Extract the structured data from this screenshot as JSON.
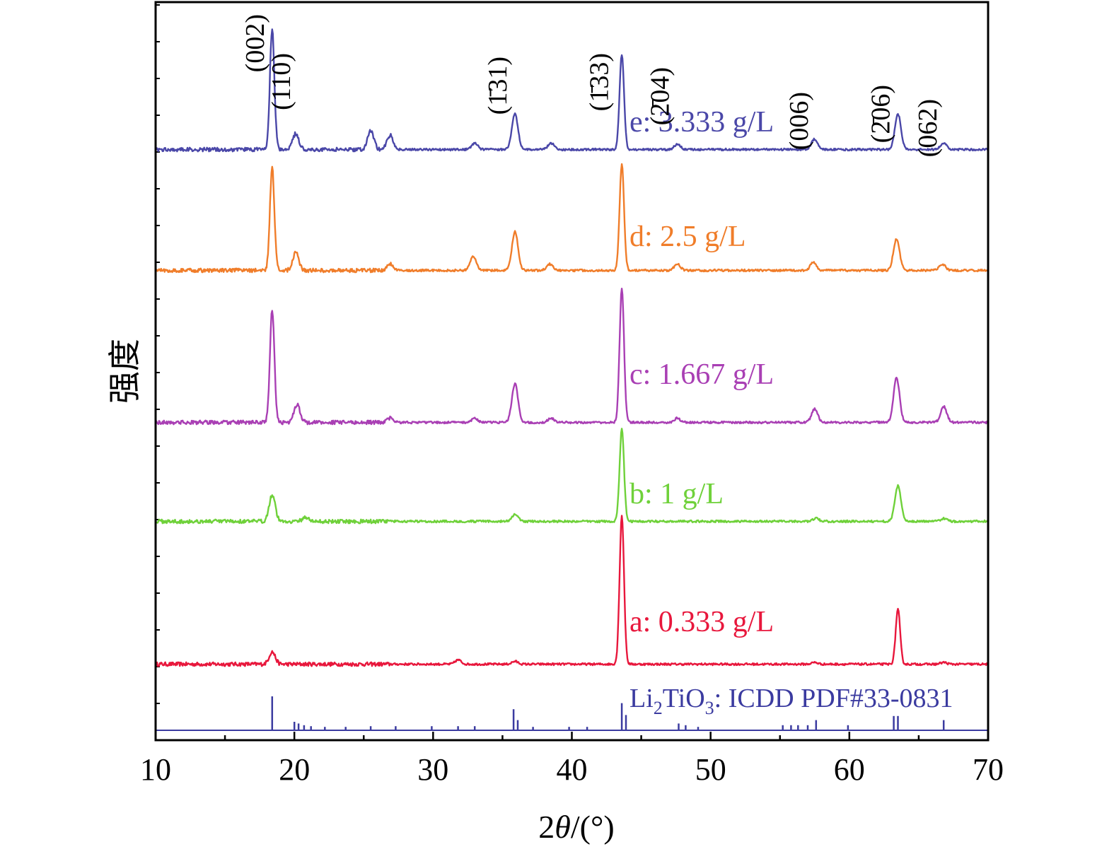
{
  "chart_data": {
    "type": "line",
    "title": "",
    "xlabel": {
      "prefix": "2",
      "italic": "θ",
      "suffix": "/(°)"
    },
    "ylabel": "强度",
    "xlim": [
      10,
      70
    ],
    "xticks": [
      "10",
      "20",
      "30",
      "40",
      "50",
      "60",
      "70"
    ],
    "grid": false,
    "legend": "inline labels next to curves",
    "series": [
      {
        "label": "a: 0.333 g/L",
        "color": "#e8173c",
        "baseline": 0.05,
        "peaks": [
          [
            18.4,
            0.35
          ],
          [
            31.8,
            0.12
          ],
          [
            35.9,
            0.08
          ],
          [
            43.6,
            4.2
          ],
          [
            57.5,
            0.05
          ],
          [
            63.5,
            1.55
          ],
          [
            66.8,
            0.05
          ]
        ]
      },
      {
        "label": "b: 1 g/L",
        "color": "#6fd13a",
        "baseline": 0.05,
        "peaks": [
          [
            18.4,
            0.75
          ],
          [
            20.8,
            0.12
          ],
          [
            35.9,
            0.2
          ],
          [
            43.6,
            2.6
          ],
          [
            57.6,
            0.08
          ],
          [
            63.5,
            1.0
          ],
          [
            66.8,
            0.08
          ]
        ]
      },
      {
        "label": "c: 1.667 g/L",
        "color": "#a93fb4",
        "baseline": 0.05,
        "peaks": [
          [
            18.4,
            3.2
          ],
          [
            20.2,
            0.5
          ],
          [
            26.9,
            0.12
          ],
          [
            33.0,
            0.12
          ],
          [
            35.9,
            1.1
          ],
          [
            38.5,
            0.12
          ],
          [
            43.6,
            3.8
          ],
          [
            47.6,
            0.12
          ],
          [
            57.5,
            0.38
          ],
          [
            63.4,
            1.25
          ],
          [
            66.8,
            0.45
          ]
        ]
      },
      {
        "label": "d: 2.5 g/L",
        "color": "#f07d2a",
        "baseline": 0.05,
        "peaks": [
          [
            18.4,
            2.9
          ],
          [
            20.1,
            0.5
          ],
          [
            26.9,
            0.18
          ],
          [
            32.9,
            0.4
          ],
          [
            35.9,
            1.1
          ],
          [
            38.4,
            0.18
          ],
          [
            43.6,
            3.0
          ],
          [
            47.6,
            0.18
          ],
          [
            57.4,
            0.22
          ],
          [
            63.4,
            0.9
          ],
          [
            66.7,
            0.18
          ]
        ]
      },
      {
        "label": "e: 3.333 g/L",
        "color": "#4a47a8",
        "baseline": 0.05,
        "peaks": [
          [
            18.4,
            3.4
          ],
          [
            20.1,
            0.45
          ],
          [
            25.5,
            0.55
          ],
          [
            26.9,
            0.4
          ],
          [
            33.0,
            0.18
          ],
          [
            35.9,
            1.0
          ],
          [
            38.5,
            0.18
          ],
          [
            43.6,
            2.7
          ],
          [
            47.6,
            0.15
          ],
          [
            57.5,
            0.3
          ],
          [
            63.5,
            1.0
          ],
          [
            66.8,
            0.18
          ]
        ]
      }
    ],
    "reference": {
      "label_parts": [
        "Li",
        "2",
        "TiO",
        "3",
        ": ICDD PDF#33-0831"
      ],
      "color": "#3b3ba0",
      "sticks": [
        [
          18.4,
          1.0
        ],
        [
          20.0,
          0.25
        ],
        [
          20.3,
          0.2
        ],
        [
          20.7,
          0.15
        ],
        [
          21.2,
          0.12
        ],
        [
          22.2,
          0.1
        ],
        [
          23.7,
          0.1
        ],
        [
          25.5,
          0.12
        ],
        [
          27.3,
          0.12
        ],
        [
          29.9,
          0.12
        ],
        [
          31.8,
          0.12
        ],
        [
          33.0,
          0.12
        ],
        [
          35.8,
          0.62
        ],
        [
          36.1,
          0.3
        ],
        [
          37.2,
          0.1
        ],
        [
          39.8,
          0.1
        ],
        [
          41.1,
          0.1
        ],
        [
          43.6,
          0.8
        ],
        [
          43.9,
          0.45
        ],
        [
          47.7,
          0.2
        ],
        [
          48.2,
          0.15
        ],
        [
          49.1,
          0.1
        ],
        [
          55.2,
          0.15
        ],
        [
          55.8,
          0.15
        ],
        [
          56.3,
          0.15
        ],
        [
          57.0,
          0.15
        ],
        [
          57.6,
          0.3
        ],
        [
          59.9,
          0.15
        ],
        [
          63.2,
          0.42
        ],
        [
          63.5,
          0.42
        ],
        [
          66.8,
          0.3
        ]
      ]
    },
    "peak_labels": [
      {
        "text": "(002)",
        "x": 18.4
      },
      {
        "text": "(110)",
        "x": 20.3
      },
      {
        "text": "(1̄31)",
        "x": 35.9
      },
      {
        "text": "(1̄33)",
        "x": 43.2
      },
      {
        "text": "(2̄04)",
        "x": 47.6
      },
      {
        "text": "(006)",
        "x": 57.6
      },
      {
        "text": "(2̄06)",
        "x": 63.5
      },
      {
        "text": "(062)",
        "x": 66.9
      }
    ]
  }
}
